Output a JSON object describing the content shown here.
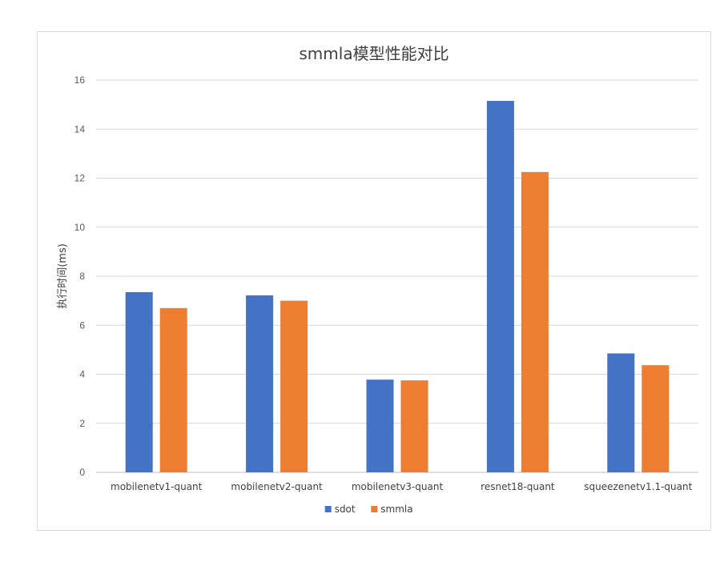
{
  "chart_data": {
    "type": "bar",
    "title": "smmla模型性能对比",
    "xlabel": "",
    "ylabel": "执行时间(ms)",
    "categories": [
      "mobilenetv1-quant",
      "mobilenetv2-quant",
      "mobilenetv3-quant",
      "resnet18-quant",
      "squeezenetv1.1-quant"
    ],
    "series": [
      {
        "name": "sdot",
        "color": "#4472c4",
        "values": [
          7.35,
          7.22,
          3.78,
          15.15,
          4.85
        ]
      },
      {
        "name": "smmla",
        "color": "#ed7d31",
        "values": [
          6.7,
          7.0,
          3.75,
          12.25,
          4.37
        ]
      }
    ],
    "ylim": [
      0,
      16
    ],
    "yticks": [
      0,
      2,
      4,
      6,
      8,
      10,
      12,
      14,
      16
    ],
    "grid": true,
    "legend_position": "bottom"
  }
}
